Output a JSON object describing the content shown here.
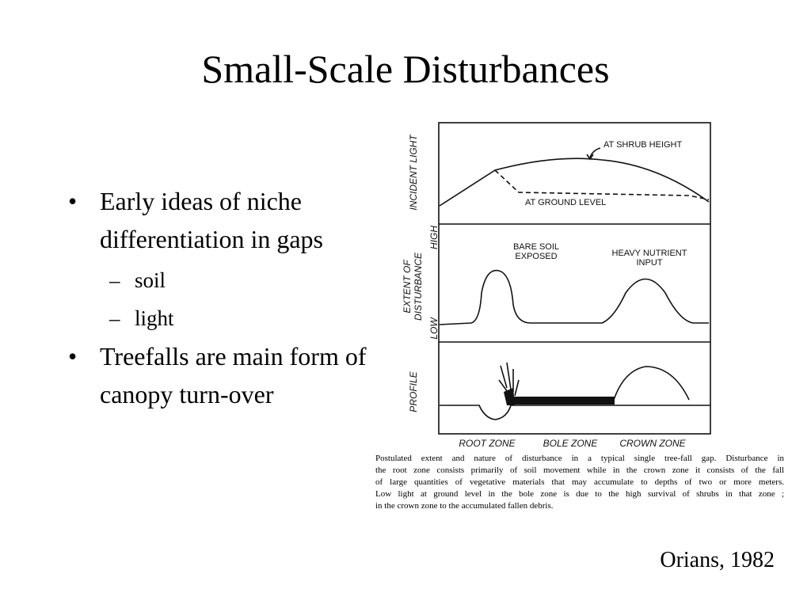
{
  "title": "Small-Scale Disturbances",
  "bullets": [
    {
      "text": "Early ideas of niche differentiation in gaps",
      "sub": [
        "soil",
        "light"
      ]
    },
    {
      "text": "Treefalls are main form of canopy turn-over"
    }
  ],
  "figure": {
    "incident_light": "INCIDENT LIGHT",
    "shrub_height": "AT SHRUB HEIGHT",
    "ground_level": "AT GROUND LEVEL",
    "high": "HIGH",
    "extent_of_disturbance": [
      "EXTENT OF",
      "DISTURBANCE"
    ],
    "low": "LOW",
    "bare_soil": [
      "BARE SOIL",
      "EXPOSED"
    ],
    "nutrient": [
      "HEAVY NUTRIENT",
      "INPUT"
    ],
    "profile": "PROFILE",
    "zones": [
      "ROOT ZONE",
      "BOLE ZONE",
      "CROWN ZONE"
    ],
    "caption": [
      "Postulated extent and nature of disturbance in a typical single tree-fall gap. Disturbance in",
      "the root zone consists primarily of soil movement while in the crown zone it consists of the fall",
      "of large quantities of vegetative materials that may accumulate to depths of two or more meters.",
      "Low light at ground level in the bole zone is due to the high survival of shrubs in that zone ;",
      "in the crown zone to the accumulated fallen debris."
    ]
  },
  "citation": "Orians, 1982"
}
